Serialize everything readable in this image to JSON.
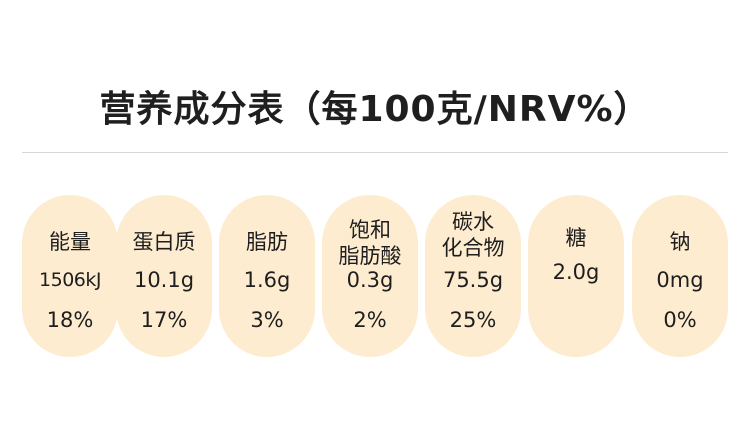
{
  "title": "营养成分表（每100克/NRV%）",
  "nutrients": [
    {
      "name_lines": [
        "能量"
      ],
      "amount": "1506kJ",
      "nrv": "18%"
    },
    {
      "name_lines": [
        "蛋白质"
      ],
      "amount": "10.1g",
      "nrv": "17%"
    },
    {
      "name_lines": [
        "脂肪"
      ],
      "amount": "1.6g",
      "nrv": "3%"
    },
    {
      "name_lines": [
        "饱和",
        "脂肪酸"
      ],
      "amount": "0.3g",
      "nrv": "2%"
    },
    {
      "name_lines": [
        "碳水",
        "化合物"
      ],
      "amount": "75.5g",
      "nrv": "25%"
    },
    {
      "name_lines": [
        "糖"
      ],
      "amount": "2.0g",
      "nrv": ""
    },
    {
      "name_lines": [
        "钠"
      ],
      "amount": "0mg",
      "nrv": "0%"
    }
  ],
  "colors": {
    "pill_background": "#fdecd0",
    "text": "#1e1e1e",
    "rule": "#d6d6d6"
  }
}
